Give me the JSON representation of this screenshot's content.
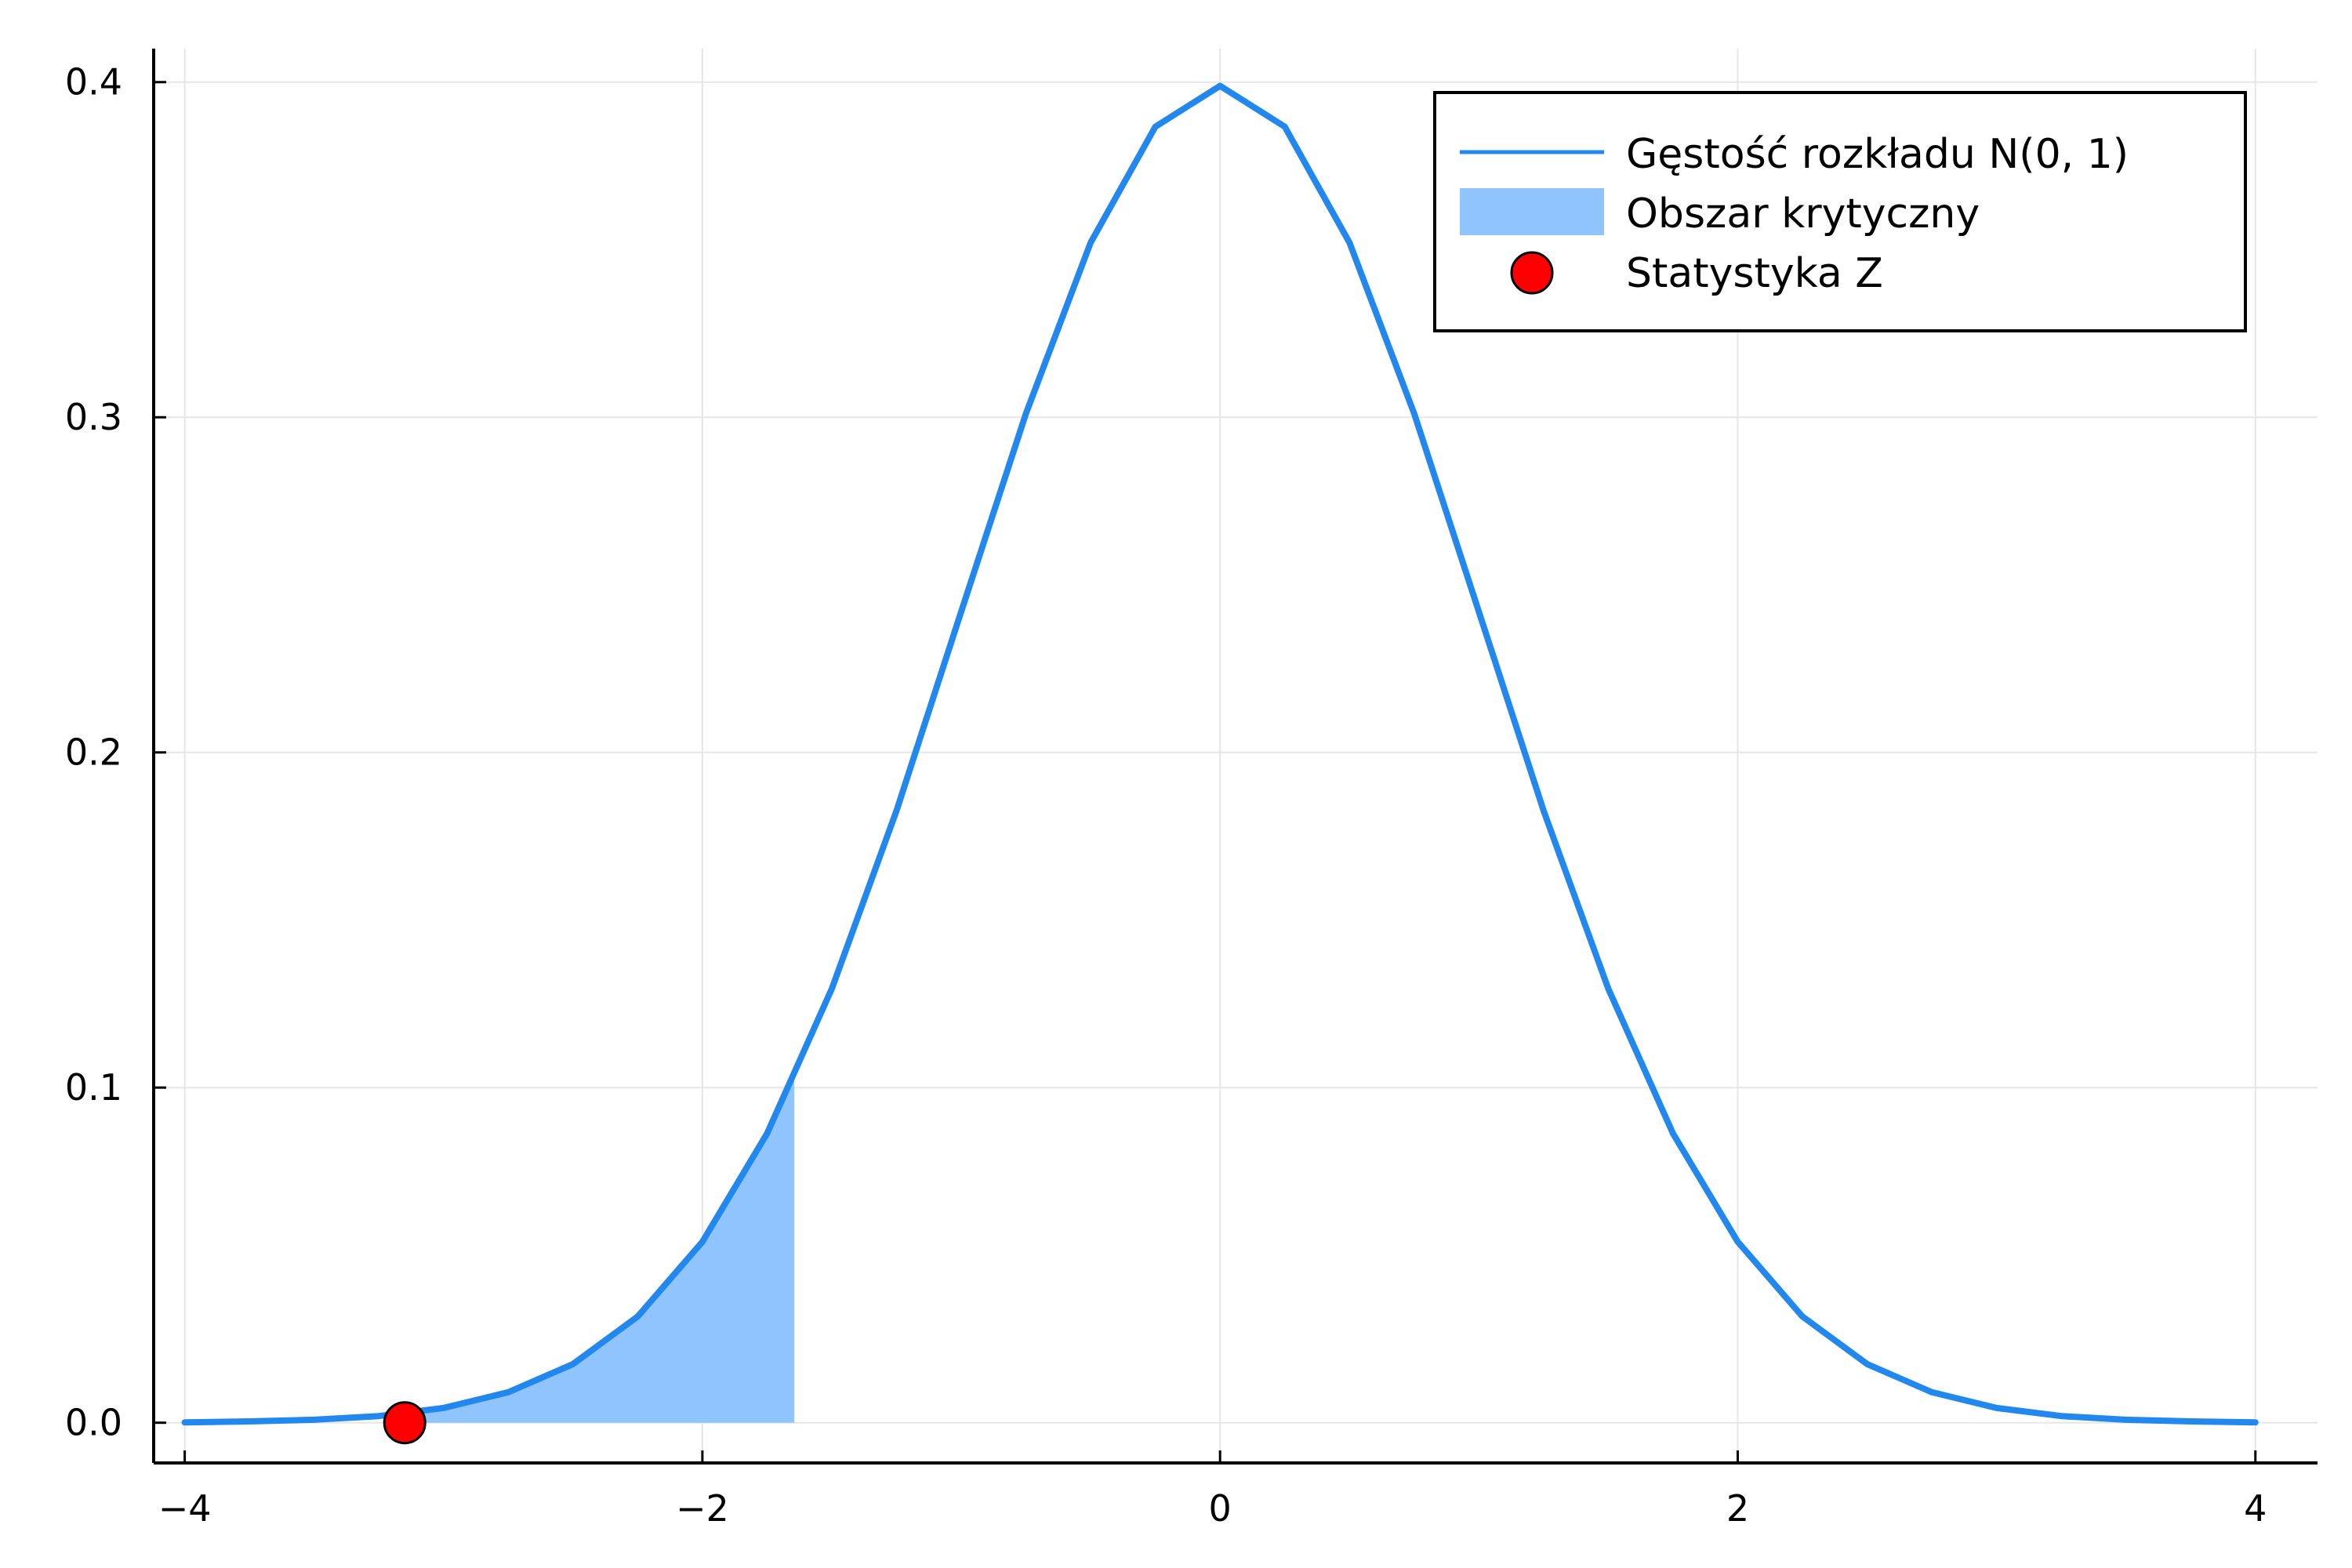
{
  "chart_data": {
    "type": "line",
    "title": "",
    "xlabel": "",
    "ylabel": "",
    "xlim": [
      -4.12,
      4.24
    ],
    "ylim": [
      -0.012,
      0.41
    ],
    "grid": true,
    "x_ticks": [
      -4,
      -2,
      0,
      2,
      4
    ],
    "x_tick_labels": [
      "−4",
      "−2",
      "0",
      "2",
      "4"
    ],
    "y_ticks": [
      0.0,
      0.1,
      0.2,
      0.3,
      0.4
    ],
    "y_tick_labels": [
      "0.0",
      "0.1",
      "0.2",
      "0.3",
      "0.4"
    ],
    "series": [
      {
        "name": "Gęstość rozkładu N(0, 1)",
        "kind": "line",
        "color": "#2288ee",
        "x": [
          -4.0,
          -3.75,
          -3.5,
          -3.25,
          -3.0,
          -2.75,
          -2.5,
          -2.25,
          -2.0,
          -1.75,
          -1.5,
          -1.25,
          -1.0,
          -0.75,
          -0.5,
          -0.25,
          0.0,
          0.25,
          0.5,
          0.75,
          1.0,
          1.25,
          1.5,
          1.75,
          2.0,
          2.25,
          2.5,
          2.75,
          3.0,
          3.25,
          3.5,
          3.75,
          4.0
        ],
        "y": [
          0.0001,
          0.0004,
          0.0009,
          0.002,
          0.0044,
          0.0091,
          0.0175,
          0.0317,
          0.054,
          0.0863,
          0.1295,
          0.1826,
          0.242,
          0.3011,
          0.3521,
          0.3867,
          0.3989,
          0.3867,
          0.3521,
          0.3011,
          0.242,
          0.1826,
          0.1295,
          0.0863,
          0.054,
          0.0317,
          0.0175,
          0.0091,
          0.0044,
          0.002,
          0.0009,
          0.0004,
          0.0001
        ]
      },
      {
        "name": "Obszar krytyczny",
        "kind": "area",
        "color": "#90c4fc",
        "x": [
          -3.15,
          -3.0,
          -2.75,
          -2.5,
          -2.25,
          -2.0,
          -1.875,
          -1.75,
          -1.645
        ],
        "y": [
          0.0028,
          0.0044,
          0.0091,
          0.0175,
          0.0317,
          0.054,
          0.069,
          0.0863,
          0.1031
        ]
      },
      {
        "name": "Statystyka Z",
        "kind": "scatter",
        "color": "#ff0000",
        "x": [
          -3.15
        ],
        "y": [
          0.0
        ]
      }
    ],
    "legend_position": "top-right"
  }
}
